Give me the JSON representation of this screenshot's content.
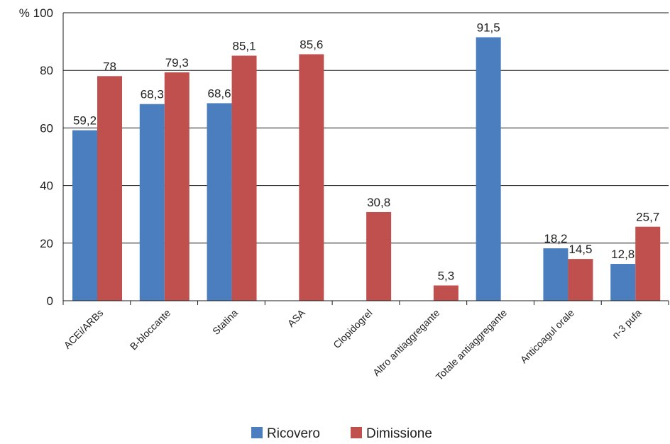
{
  "chart_data": {
    "type": "bar",
    "y_unit_label": "%",
    "ylim": [
      0,
      100
    ],
    "yticks": [
      0,
      20,
      40,
      60,
      80,
      100
    ],
    "grid": true,
    "legend_position": "bottom-center",
    "categories": [
      "ACEi/ARBs",
      "B-bloccante",
      "Statina",
      "ASA",
      "Clopidogrel",
      "Altro antiaggregante",
      "Totale antiaggregante",
      "Anticoagul orale",
      "n-3 pufa"
    ],
    "series": [
      {
        "name": "Ricovero",
        "color": "#4a7ebf",
        "values": [
          59.2,
          68.3,
          68.6,
          null,
          null,
          null,
          91.5,
          18.2,
          12.8
        ],
        "labels": [
          "59,2",
          "68,3",
          "68,6",
          "",
          "",
          "",
          "91,5",
          "18,2",
          "12,8"
        ]
      },
      {
        "name": "Dimissione",
        "color": "#c0504d",
        "values": [
          78,
          79.3,
          85.1,
          85.6,
          30.8,
          5.3,
          null,
          14.5,
          25.7
        ],
        "labels": [
          "78",
          "79,3",
          "85,1",
          "85,6",
          "30,8",
          "5,3",
          "",
          "14,5",
          "25,7"
        ]
      }
    ]
  }
}
